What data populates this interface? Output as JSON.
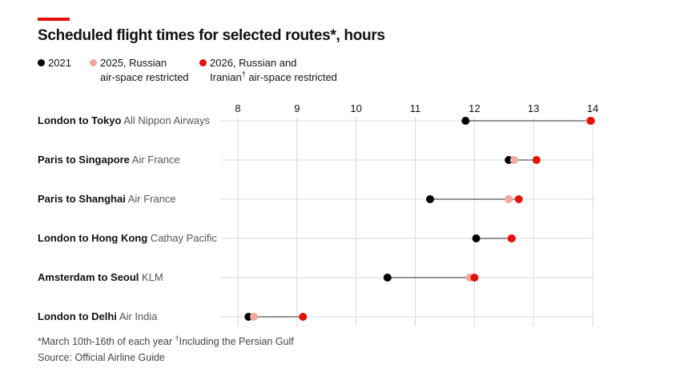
{
  "title": "Scheduled flight times for selected routes*, hours",
  "colors": {
    "accent": "#e3120b",
    "series2021": "#000000",
    "series2025": "#f4a6a0",
    "series2026": "#e3120b"
  },
  "legend": {
    "s2021": "2021",
    "s2025_line1": "2025, Russian",
    "s2025_line2": "air-space restricted",
    "s2026_line1": "2026, Russian and",
    "s2026_line2_pre": "Iranian",
    "s2026_dagger": "†",
    "s2026_line2_post": " air-space restricted"
  },
  "chart_data": {
    "type": "dot-range",
    "title": "Scheduled flight times for selected routes*, hours",
    "xlim": [
      8,
      14
    ],
    "xticks": [
      "8",
      "9",
      "10",
      "11",
      "12",
      "13",
      "14"
    ],
    "series": [
      {
        "name": "2021",
        "color": "#000000"
      },
      {
        "name": "2025, Russian air-space restricted",
        "color": "#f4a6a0"
      },
      {
        "name": "2026, Russian and Iranian† air-space restricted",
        "color": "#e3120b"
      }
    ],
    "rows": [
      {
        "route": "London to Tokyo",
        "airline": "All Nippon Airways",
        "v2021": 11.85,
        "v2025": 13.95,
        "v2026": 13.97
      },
      {
        "route": "Paris to Singapore",
        "airline": "Air France",
        "v2021": 12.58,
        "v2025": 12.67,
        "v2026": 13.05
      },
      {
        "route": "Paris to Shanghai",
        "airline": "Air France",
        "v2021": 11.25,
        "v2025": 12.58,
        "v2026": 12.75
      },
      {
        "route": "London to Hong Kong",
        "airline": "Cathay Pacific",
        "v2021": 12.03,
        "v2025": 12.62,
        "v2026": 12.63
      },
      {
        "route": "Amsterdam to Seoul",
        "airline": "KLM",
        "v2021": 10.53,
        "v2025": 11.92,
        "v2026": 12.0
      },
      {
        "route": "London to Delhi",
        "airline": "Air India",
        "v2021": 8.18,
        "v2025": 8.27,
        "v2026": 9.1
      }
    ]
  },
  "footnote": {
    "part1": "*March 10th-16th of each year ",
    "dagger": "†",
    "part2": "Including the Persian Gulf"
  },
  "source": "Source: Official Airline Guide"
}
